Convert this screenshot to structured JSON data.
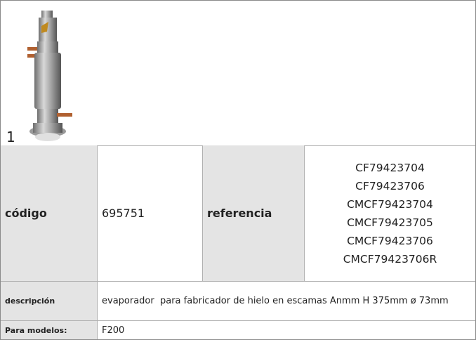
{
  "figure": {
    "label": "1"
  },
  "table": {
    "rows": [
      [
        "código",
        "695751",
        "referencia",
        [
          "CF79423704",
          "CF79423706",
          "CMCF79423704",
          "CMCF79423705",
          "CMCF79423706",
          "CMCF79423706R"
        ]
      ],
      [
        "descripción",
        "evaporador  para fabricador de hielo en escamas Anmm H 375mm ø 73mm"
      ],
      [
        "Para modelos:",
        "F200"
      ]
    ]
  }
}
